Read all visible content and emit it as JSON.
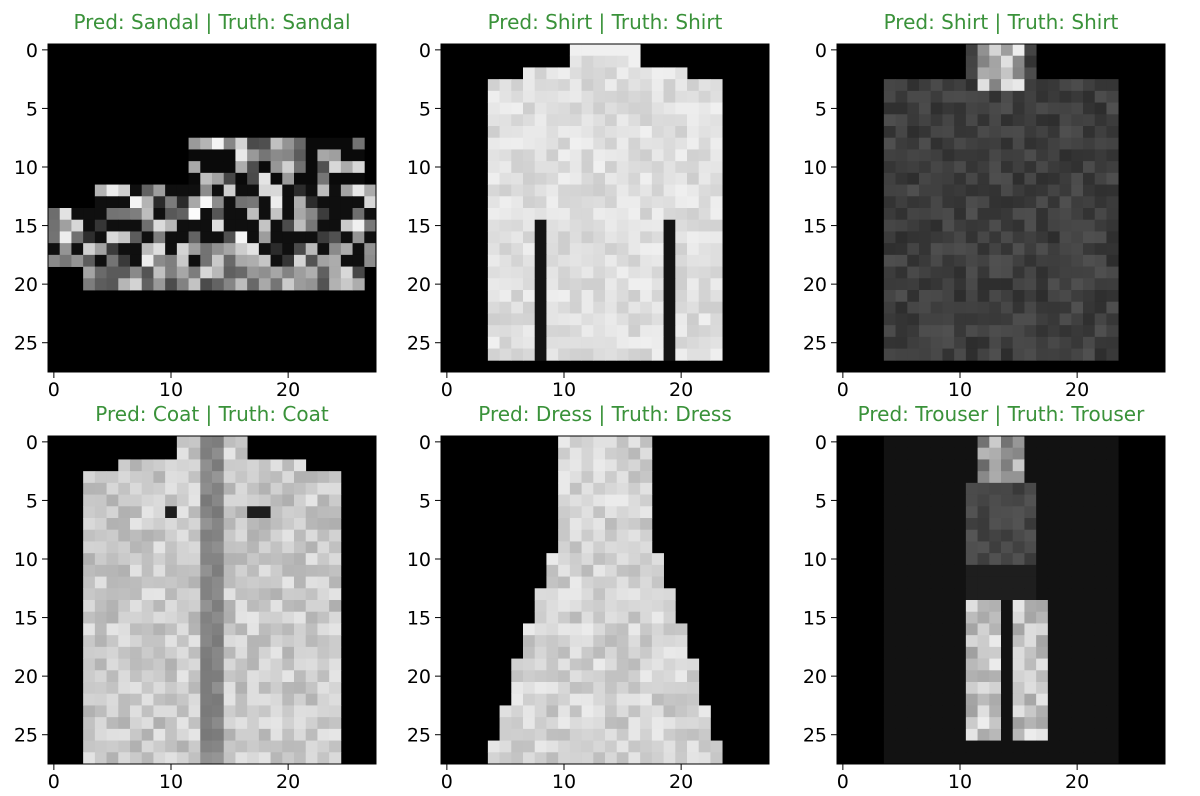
{
  "figure": {
    "title_color": "#3a923a",
    "tick_color": "#000000",
    "pixel_colormap": "gray"
  },
  "chart_data": [
    {
      "type": "heatmap",
      "title": "Pred: Sandal | Truth: Sandal",
      "x_ticks": [
        "0",
        "10",
        "20"
      ],
      "y_ticks": [
        "0",
        "5",
        "10",
        "15",
        "20",
        "25"
      ],
      "xlim": [
        -0.5,
        27.5
      ],
      "ylim": [
        27.5,
        -0.5
      ],
      "image_size": [
        28,
        28
      ],
      "garment": "sandal"
    },
    {
      "type": "heatmap",
      "title": "Pred: Shirt | Truth: Shirt",
      "x_ticks": [
        "0",
        "10",
        "20"
      ],
      "y_ticks": [
        "0",
        "5",
        "10",
        "15",
        "20",
        "25"
      ],
      "xlim": [
        -0.5,
        27.5
      ],
      "ylim": [
        27.5,
        -0.5
      ],
      "image_size": [
        28,
        28
      ],
      "garment": "shirt_bright"
    },
    {
      "type": "heatmap",
      "title": "Pred: Shirt | Truth: Shirt",
      "x_ticks": [
        "0",
        "10",
        "20"
      ],
      "y_ticks": [
        "0",
        "5",
        "10",
        "15",
        "20",
        "25"
      ],
      "xlim": [
        -0.5,
        27.5
      ],
      "ylim": [
        27.5,
        -0.5
      ],
      "image_size": [
        28,
        28
      ],
      "garment": "shirt_dark"
    },
    {
      "type": "heatmap",
      "title": "Pred: Coat | Truth: Coat",
      "x_ticks": [
        "0",
        "10",
        "20"
      ],
      "y_ticks": [
        "0",
        "5",
        "10",
        "15",
        "20",
        "25"
      ],
      "xlim": [
        -0.5,
        27.5
      ],
      "ylim": [
        27.5,
        -0.5
      ],
      "image_size": [
        28,
        28
      ],
      "garment": "coat"
    },
    {
      "type": "heatmap",
      "title": "Pred: Dress | Truth: Dress",
      "x_ticks": [
        "0",
        "10",
        "20"
      ],
      "y_ticks": [
        "0",
        "5",
        "10",
        "15",
        "20",
        "25"
      ],
      "xlim": [
        -0.5,
        27.5
      ],
      "ylim": [
        27.5,
        -0.5
      ],
      "image_size": [
        28,
        28
      ],
      "garment": "dress"
    },
    {
      "type": "heatmap",
      "title": "Pred: Trouser | Truth: Trouser",
      "x_ticks": [
        "0",
        "10",
        "20"
      ],
      "y_ticks": [
        "0",
        "5",
        "10",
        "15",
        "20",
        "25"
      ],
      "xlim": [
        -0.5,
        27.5
      ],
      "ylim": [
        27.5,
        -0.5
      ],
      "image_size": [
        28,
        28
      ],
      "garment": "trouser"
    }
  ]
}
